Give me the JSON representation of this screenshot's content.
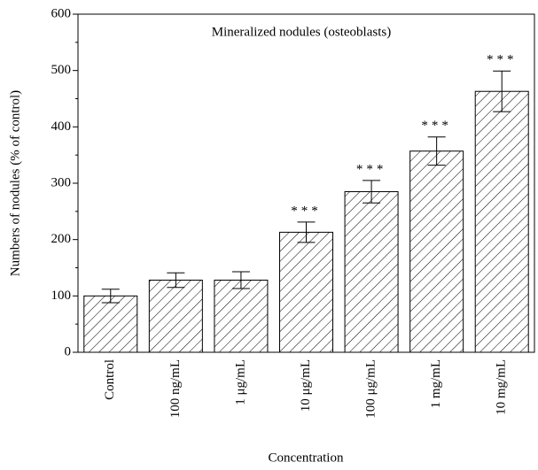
{
  "chart_data": {
    "type": "bar",
    "title": "Mineralized nodules (osteoblasts)",
    "xlabel": "Concentration",
    "ylabel": "Numbers of nodules (% of control)",
    "categories": [
      "Control",
      "100 ng/mL",
      "1 μg/mL",
      "10 μg/mL",
      "100 μg/mL",
      "1 mg/mL",
      "10 mg/mL"
    ],
    "values": [
      100,
      128,
      128,
      213,
      285,
      357,
      463
    ],
    "errors": [
      12,
      13,
      15,
      18,
      20,
      25,
      36
    ],
    "annotations": [
      null,
      null,
      null,
      "***",
      "***",
      "***",
      "***"
    ],
    "color": "#000000",
    "hatch": "diagonal",
    "ylim": [
      0,
      600
    ],
    "yticks": [
      0,
      100,
      200,
      300,
      400,
      500,
      600
    ],
    "grid": false
  }
}
